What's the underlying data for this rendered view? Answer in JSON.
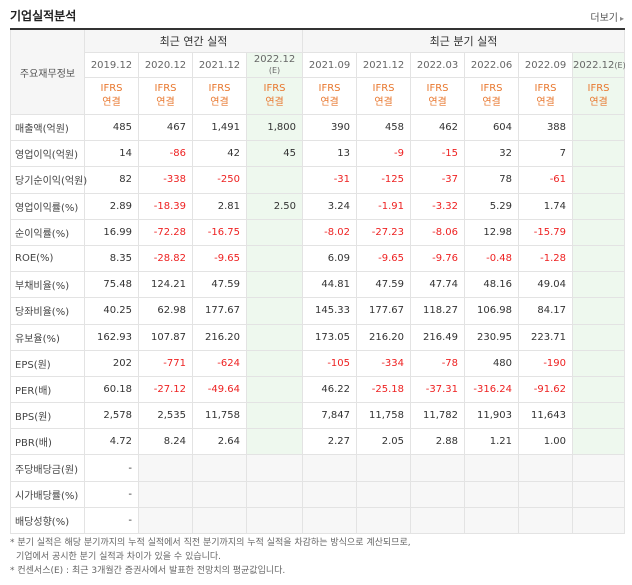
{
  "title": "기업실적분석",
  "more_label": "더보기",
  "header": {
    "row_label": "주요재무정보",
    "annual_group": "최근 연간 실적",
    "quarter_group": "최근 분기 실적",
    "annual_periods": [
      "2019.12",
      "2020.12",
      "2021.12",
      "2022.12"
    ],
    "annual_est_tag": "(E)",
    "quarter_periods": [
      "2021.09",
      "2021.12",
      "2022.03",
      "2022.06",
      "2022.09",
      "2022.12"
    ],
    "quarter_est_tag": "(E)",
    "ifrs_top": "IFRS",
    "ifrs_bottom": "연결"
  },
  "rows": [
    {
      "label": "매출액(억원)",
      "values": [
        "485",
        "467",
        "1,491",
        "1,800",
        "390",
        "458",
        "462",
        "604",
        "388",
        ""
      ]
    },
    {
      "label": "영업이익(억원)",
      "values": [
        "14",
        "-86",
        "42",
        "45",
        "13",
        "-9",
        "-15",
        "32",
        "7",
        ""
      ]
    },
    {
      "label": "당기순이익(억원)",
      "values": [
        "82",
        "-338",
        "-250",
        "",
        "-31",
        "-125",
        "-37",
        "78",
        "-61",
        ""
      ]
    },
    {
      "label": "영업이익률(%)",
      "values": [
        "2.89",
        "-18.39",
        "2.81",
        "2.50",
        "3.24",
        "-1.91",
        "-3.32",
        "5.29",
        "1.74",
        ""
      ]
    },
    {
      "label": "순이익률(%)",
      "values": [
        "16.99",
        "-72.28",
        "-16.75",
        "",
        "-8.02",
        "-27.23",
        "-8.06",
        "12.98",
        "-15.79",
        ""
      ]
    },
    {
      "label": "ROE(%)",
      "values": [
        "8.35",
        "-28.82",
        "-9.65",
        "",
        "6.09",
        "-9.65",
        "-9.76",
        "-0.48",
        "-1.28",
        ""
      ]
    },
    {
      "label": "부채비율(%)",
      "values": [
        "75.48",
        "124.21",
        "47.59",
        "",
        "44.81",
        "47.59",
        "47.74",
        "48.16",
        "49.04",
        ""
      ]
    },
    {
      "label": "당좌비율(%)",
      "values": [
        "40.25",
        "62.98",
        "177.67",
        "",
        "145.33",
        "177.67",
        "118.27",
        "106.98",
        "84.17",
        ""
      ]
    },
    {
      "label": "유보율(%)",
      "values": [
        "162.93",
        "107.87",
        "216.20",
        "",
        "173.05",
        "216.20",
        "216.49",
        "230.95",
        "223.71",
        ""
      ]
    },
    {
      "label": "EPS(원)",
      "values": [
        "202",
        "-771",
        "-624",
        "",
        "-105",
        "-334",
        "-78",
        "480",
        "-190",
        ""
      ]
    },
    {
      "label": "PER(배)",
      "values": [
        "60.18",
        "-27.12",
        "-49.64",
        "",
        "46.22",
        "-25.18",
        "-37.31",
        "-316.24",
        "-91.62",
        ""
      ]
    },
    {
      "label": "BPS(원)",
      "values": [
        "2,578",
        "2,535",
        "11,758",
        "",
        "7,847",
        "11,758",
        "11,782",
        "11,903",
        "11,643",
        ""
      ]
    },
    {
      "label": "PBR(배)",
      "values": [
        "4.72",
        "8.24",
        "2.64",
        "",
        "2.27",
        "2.05",
        "2.88",
        "1.21",
        "1.00",
        ""
      ]
    },
    {
      "label": "주당배당금(원)",
      "values": [
        "-",
        "",
        "",
        "",
        "",
        "",
        "",
        "",
        "",
        ""
      ]
    },
    {
      "label": "시가배당률(%)",
      "values": [
        "-",
        "",
        "",
        "",
        "",
        "",
        "",
        "",
        "",
        ""
      ]
    },
    {
      "label": "배당성향(%)",
      "values": [
        "-",
        "",
        "",
        "",
        "",
        "",
        "",
        "",
        "",
        ""
      ]
    }
  ],
  "notes": [
    "* 분기 실적은 해당 분기까지의 누적 실적에서 직전 분기까지의 누적 실적을 차감하는 방식으로 계산되므로,",
    "기업에서 공시한 분기 실적과 차이가 있을 수 있습니다.",
    "* 컨센서스(E) : 최근 3개월간 증권사에서 발표한 전망치의 평균값입니다."
  ]
}
